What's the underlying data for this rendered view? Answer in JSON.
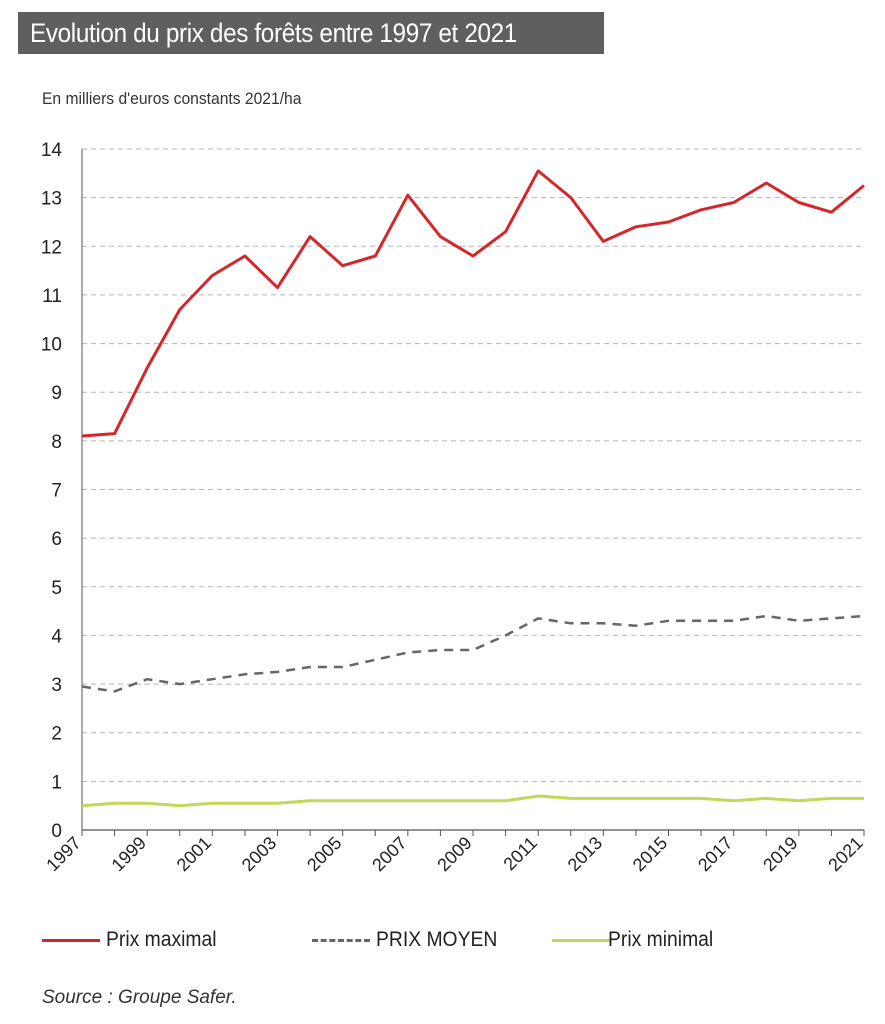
{
  "title": "Evolution du prix des forêts entre 1997 et 2021",
  "unit_label": "En milliers d'euros constants 2021/ha",
  "source": "Source : Groupe Safer.",
  "colors": {
    "max": "#d6262b",
    "moyen": "#666666",
    "min": "#c5d65a",
    "grid": "#b5b5b5",
    "axis": "#555555",
    "title_bg": "#5f5f5f"
  },
  "legend": [
    {
      "label": "Prix maximal",
      "color": "#d6262b",
      "style": "solid"
    },
    {
      "label": "PRIX MOYEN",
      "color": "#666666",
      "style": "dashed"
    },
    {
      "label": "Prix minimal",
      "color": "#c5d65a",
      "style": "solid"
    }
  ],
  "chart_data": {
    "type": "line",
    "x": [
      1997,
      1998,
      1999,
      2000,
      2001,
      2002,
      2003,
      2004,
      2005,
      2006,
      2007,
      2008,
      2009,
      2010,
      2011,
      2012,
      2013,
      2014,
      2015,
      2016,
      2017,
      2018,
      2019,
      2020,
      2021
    ],
    "x_tick_labels": [
      "1997",
      "1999",
      "2001",
      "2003",
      "2005",
      "2007",
      "2009",
      "2011",
      "2013",
      "2015",
      "2017",
      "2019",
      "2021"
    ],
    "y_ticks": [
      0,
      1,
      2,
      3,
      4,
      5,
      6,
      7,
      8,
      9,
      10,
      11,
      12,
      13,
      14
    ],
    "ylim": [
      0,
      14
    ],
    "grid": true,
    "legend_position": "bottom",
    "series": [
      {
        "name": "Prix maximal",
        "style": "solid",
        "values": [
          8.1,
          8.15,
          9.5,
          10.7,
          11.4,
          11.8,
          11.15,
          12.2,
          11.6,
          11.8,
          13.05,
          12.2,
          11.8,
          12.3,
          13.55,
          13.0,
          12.1,
          12.4,
          12.5,
          12.75,
          12.9,
          13.3,
          12.9,
          12.7,
          13.25
        ]
      },
      {
        "name": "PRIX MOYEN",
        "style": "dashed",
        "values": [
          2.95,
          2.85,
          3.1,
          3.0,
          3.1,
          3.2,
          3.25,
          3.35,
          3.35,
          3.5,
          3.65,
          3.7,
          3.7,
          4.0,
          4.35,
          4.25,
          4.25,
          4.2,
          4.3,
          4.3,
          4.3,
          4.4,
          4.3,
          4.35,
          4.4
        ]
      },
      {
        "name": "Prix minimal",
        "style": "solid",
        "values": [
          0.5,
          0.55,
          0.55,
          0.5,
          0.55,
          0.55,
          0.55,
          0.6,
          0.6,
          0.6,
          0.6,
          0.6,
          0.6,
          0.6,
          0.7,
          0.65,
          0.65,
          0.65,
          0.65,
          0.65,
          0.6,
          0.65,
          0.6,
          0.65,
          0.65
        ]
      }
    ]
  }
}
